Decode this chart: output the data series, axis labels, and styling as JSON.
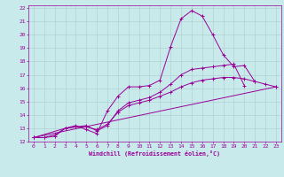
{
  "xlabel": "Windchill (Refroidissement éolien,°C)",
  "background_color": "#c8eaea",
  "line_color": "#990099",
  "grid_color": "#aacccc",
  "xlim": [
    -0.5,
    23.5
  ],
  "ylim": [
    12,
    22.2
  ],
  "xticks": [
    0,
    1,
    2,
    3,
    4,
    5,
    6,
    7,
    8,
    9,
    10,
    11,
    12,
    13,
    14,
    15,
    16,
    17,
    18,
    19,
    20,
    21,
    22,
    23
  ],
  "yticks": [
    12,
    13,
    14,
    15,
    16,
    17,
    18,
    19,
    20,
    21,
    22
  ],
  "series": [
    {
      "x": [
        0,
        1,
        2,
        3,
        4,
        5,
        6,
        7,
        8,
        9,
        10,
        11,
        12,
        13,
        14,
        15,
        16,
        17,
        18,
        19,
        20,
        21
      ],
      "y": [
        12.3,
        12.3,
        12.5,
        13.0,
        13.2,
        12.9,
        12.6,
        14.3,
        15.4,
        16.1,
        16.1,
        16.2,
        16.6,
        19.1,
        21.2,
        21.8,
        21.4,
        20.0,
        18.5,
        17.6,
        17.7,
        16.5
      ]
    },
    {
      "x": [
        0,
        1,
        2,
        3,
        4,
        5,
        6,
        7,
        8,
        9,
        10,
        11,
        12,
        13,
        14,
        15,
        16,
        17,
        18,
        19,
        20
      ],
      "y": [
        12.3,
        12.3,
        12.4,
        13.0,
        13.1,
        13.2,
        12.8,
        13.2,
        14.3,
        14.9,
        15.1,
        15.3,
        15.7,
        16.3,
        17.0,
        17.4,
        17.5,
        17.6,
        17.7,
        17.8,
        16.2
      ]
    },
    {
      "x": [
        0,
        3,
        4,
        5,
        6,
        7,
        8,
        9,
        10,
        11,
        12,
        13,
        14,
        15,
        16,
        17,
        18,
        19,
        20,
        21,
        22,
        23
      ],
      "y": [
        12.3,
        13.0,
        13.1,
        13.1,
        12.9,
        13.3,
        14.2,
        14.7,
        14.9,
        15.1,
        15.4,
        15.7,
        16.1,
        16.4,
        16.6,
        16.7,
        16.8,
        16.8,
        16.7,
        16.5,
        16.3,
        16.1
      ]
    },
    {
      "x": [
        0,
        23
      ],
      "y": [
        12.3,
        16.1
      ]
    }
  ]
}
